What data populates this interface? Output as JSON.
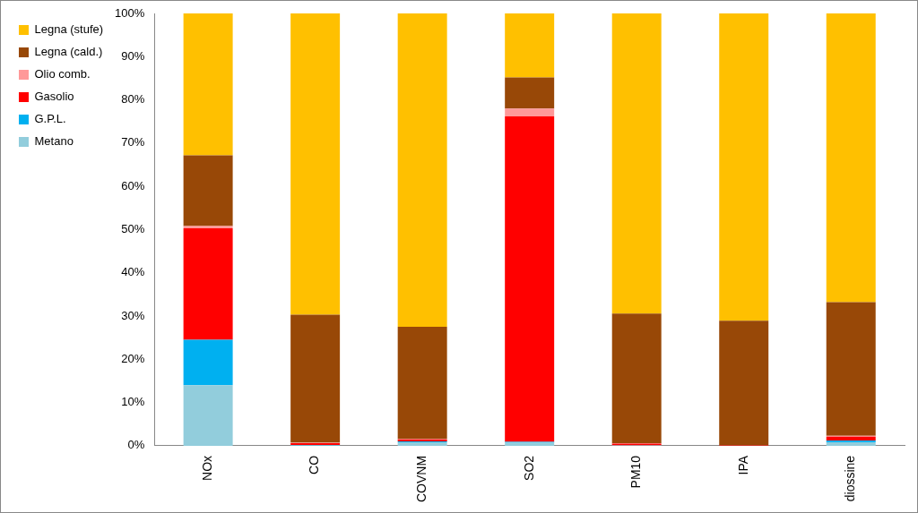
{
  "chart_data": {
    "type": "bar",
    "stacked": true,
    "grid": false,
    "legend": "left",
    "categories": [
      "NOx",
      "CO",
      "COVNM",
      "SO2",
      "PM10",
      "IPA",
      "diossine"
    ],
    "series": [
      {
        "name": "Metano",
        "color": "#92CDDC",
        "values": [
          14,
          0.1,
          0.8,
          0.7,
          0.1,
          0,
          0.8
        ]
      },
      {
        "name": "G.P.L.",
        "color": "#00B0F0",
        "values": [
          10.5,
          0.1,
          0.2,
          0.2,
          0,
          0,
          0.4
        ]
      },
      {
        "name": "Gasolio",
        "color": "#FF0000",
        "values": [
          25.8,
          0.4,
          0.5,
          75.3,
          0.4,
          0.1,
          0.9
        ]
      },
      {
        "name": "Olio comb.",
        "color": "#FF9999",
        "values": [
          0.5,
          0.1,
          0.1,
          1.8,
          0.1,
          0,
          0.2
        ]
      },
      {
        "name": "Legna (cald.)",
        "color": "#984807",
        "values": [
          16.4,
          29.6,
          25.9,
          7.2,
          30,
          28.8,
          30.9
        ]
      },
      {
        "name": "Legna (stufe)",
        "color": "#FFC000",
        "values": [
          32.8,
          69.7,
          72.5,
          14.8,
          69.4,
          71.1,
          66.8
        ]
      }
    ],
    "ylim": [
      0,
      100
    ],
    "yticks": [
      {
        "value": 0,
        "label": "0%"
      },
      {
        "value": 10,
        "label": "10%"
      },
      {
        "value": 20,
        "label": "20%"
      },
      {
        "value": 30,
        "label": "30%"
      },
      {
        "value": 40,
        "label": "40%"
      },
      {
        "value": 50,
        "label": "50%"
      },
      {
        "value": 60,
        "label": "60%"
      },
      {
        "value": 70,
        "label": "70%"
      },
      {
        "value": 80,
        "label": "80%"
      },
      {
        "value": 90,
        "label": "90%"
      },
      {
        "value": 100,
        "label": "100%"
      }
    ]
  }
}
